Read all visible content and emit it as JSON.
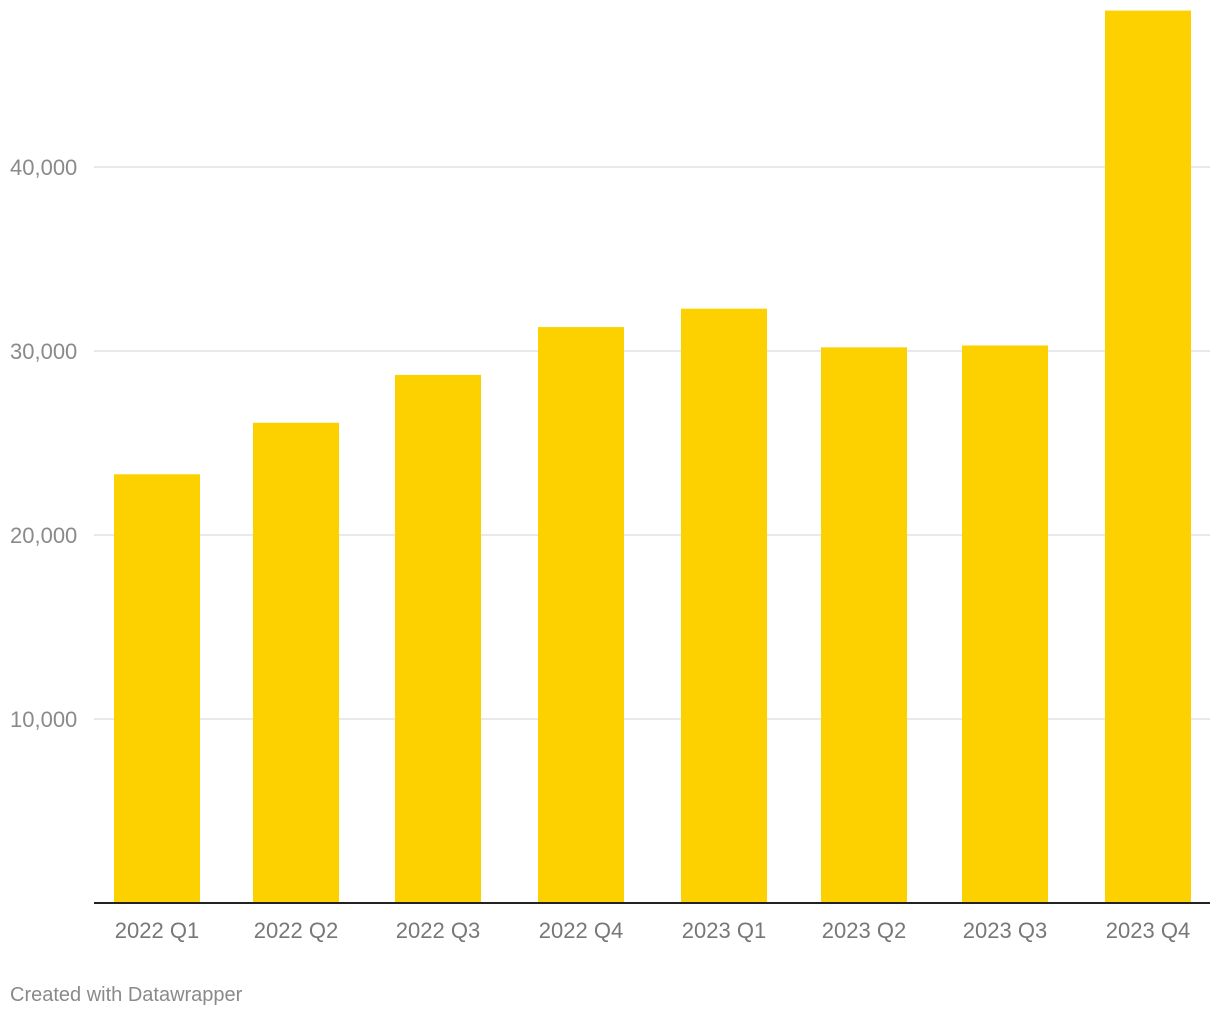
{
  "chart_data": {
    "type": "bar",
    "categories": [
      "2022 Q1",
      "2022 Q2",
      "2022 Q3",
      "2022 Q4",
      "2023 Q1",
      "2023 Q2",
      "2023 Q3",
      "2023 Q4"
    ],
    "values": [
      23300,
      26100,
      28700,
      31300,
      32300,
      30200,
      30300,
      48500
    ],
    "title": "",
    "xlabel": "",
    "ylabel": "",
    "ylim": [
      0,
      48500
    ],
    "yticks": [
      10000,
      20000,
      30000,
      40000
    ],
    "ytick_labels": [
      "10,000",
      "20,000",
      "30,000",
      "40,000"
    ],
    "grid": true,
    "bar_color": "#fdd100"
  },
  "footer": {
    "credit": "Created with Datawrapper"
  }
}
